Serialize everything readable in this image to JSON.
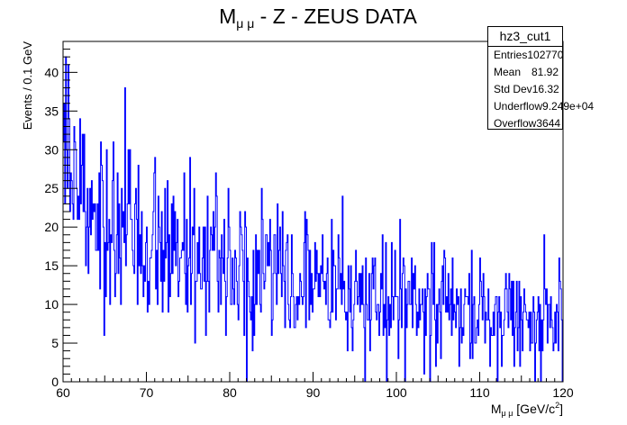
{
  "chart_data": {
    "type": "histogram",
    "title": "M",
    "title_subscript": "μ μ",
    "title_rest": " - Z - ZEUS DATA",
    "xlabel": "M",
    "xlabel_subscript": "μ μ",
    "xlabel_rest": " [GeV/c",
    "xlabel_sup": "2",
    "xlabel_close": "]",
    "ylabel": "Events / 0.1 GeV",
    "xlim": [
      60,
      120
    ],
    "ylim": [
      0,
      44
    ],
    "bin_width": 0.1,
    "x_ticks": [
      "60",
      "70",
      "80",
      "90",
      "100",
      "110",
      "120"
    ],
    "y_ticks": [
      "0",
      "5",
      "10",
      "15",
      "20",
      "25",
      "30",
      "35",
      "40"
    ],
    "series": [
      {
        "color": "#0000ff",
        "trend": {
          "x": [
            60,
            65,
            70,
            75,
            80,
            85,
            90,
            95,
            100,
            105,
            110,
            115,
            120
          ],
          "y": [
            24,
            21,
            18.5,
            16.5,
            15,
            13.8,
            12.5,
            11.5,
            10.5,
            9.5,
            8.8,
            8.2,
            7.6
          ]
        },
        "spikes": [
          [
            60.1,
            36
          ],
          [
            60.4,
            42
          ],
          [
            60.6,
            41
          ],
          [
            61.0,
            26
          ],
          [
            62.5,
            32
          ],
          [
            63.3,
            25
          ],
          [
            64.5,
            31
          ],
          [
            65.2,
            30
          ],
          [
            66.0,
            31
          ],
          [
            67.4,
            38
          ],
          [
            68.0,
            30
          ],
          [
            69.0,
            28
          ],
          [
            71.0,
            29
          ],
          [
            72.6,
            26
          ],
          [
            75.7,
            25
          ],
          [
            78.4,
            24
          ],
          [
            81.2,
            22
          ],
          [
            82.0,
            0
          ],
          [
            86.0,
            20
          ],
          [
            89.0,
            22
          ],
          [
            93.0,
            19
          ],
          [
            96.2,
            0
          ],
          [
            100.4,
            21
          ],
          [
            101.0,
            0
          ],
          [
            104.5,
            18
          ],
          [
            110.0,
            16
          ],
          [
            117.7,
            19
          ],
          [
            119.6,
            16
          ],
          [
            120.0,
            0
          ]
        ]
      }
    ],
    "stats": {
      "name": "hz3_cut1",
      "rows": [
        {
          "label": "Entries",
          "value": "102770"
        },
        {
          "label": "Mean",
          "value": "81.92"
        },
        {
          "label": "Std Dev",
          "value": "16.32"
        },
        {
          "label": "Underflow",
          "value": "9.249e+04"
        },
        {
          "label": "Overflow",
          "value": "3644"
        }
      ]
    }
  }
}
